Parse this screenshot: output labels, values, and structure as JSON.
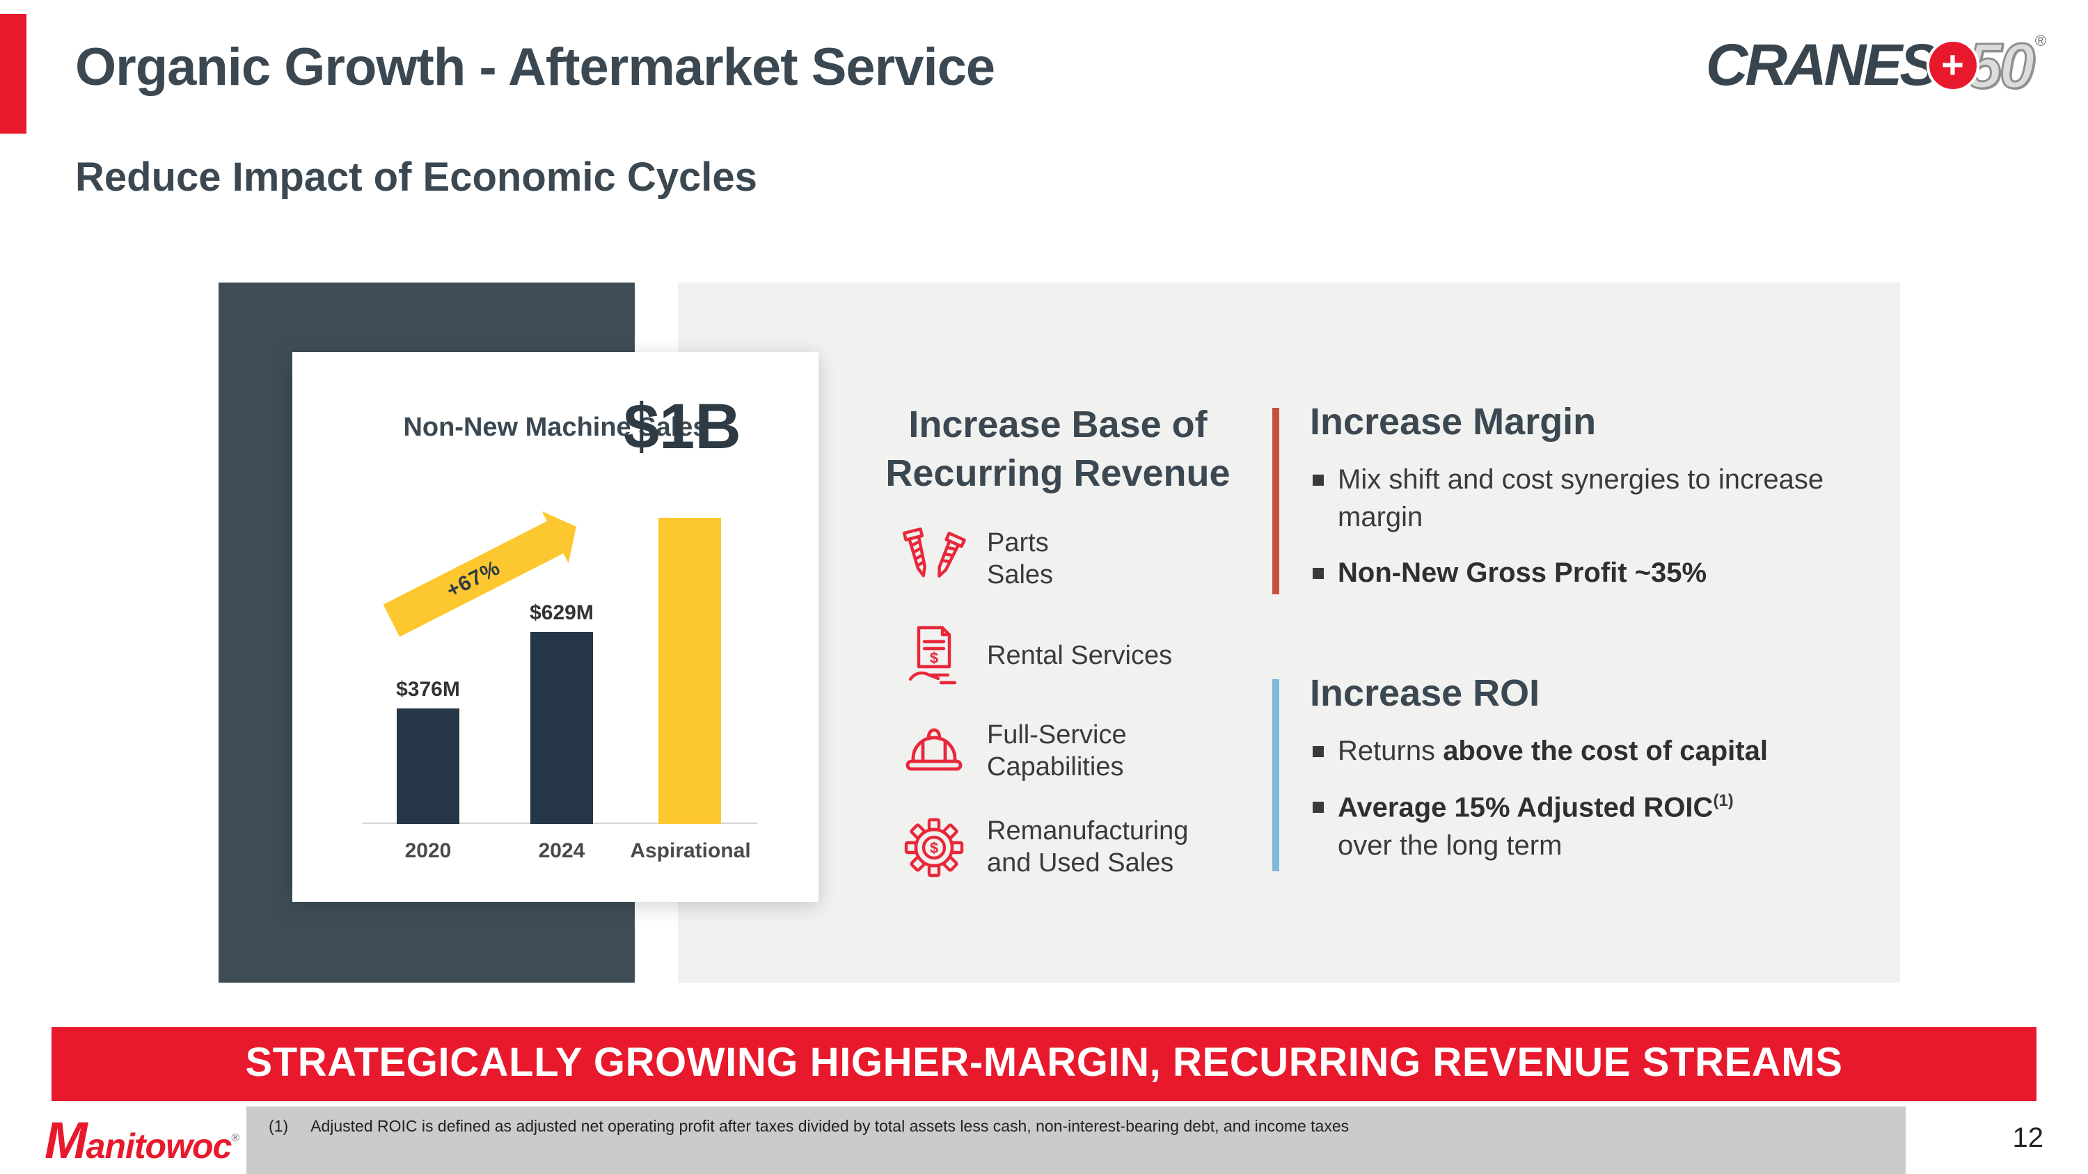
{
  "slide": {
    "title": "Organic Growth - Aftermarket Service",
    "subtitle": "Reduce Impact of Economic Cycles",
    "banner": "STRATEGICALLY GROWING HIGHER-MARGIN, RECURRING REVENUE STREAMS",
    "page_number": "12"
  },
  "header_logo": {
    "cranes": "CRANES",
    "plus": "+",
    "fifty": "50",
    "registered": "®"
  },
  "chart_data": {
    "type": "bar",
    "title": "Non-New Machine Sales",
    "categories": [
      "2020",
      "2024",
      "Aspirational"
    ],
    "values": [
      376,
      629,
      1000
    ],
    "value_labels": [
      "$376M",
      "$629M",
      ""
    ],
    "colors": [
      "#253746",
      "#253746",
      "#fdc82f"
    ],
    "big_label": "$1B",
    "growth_label": "+67%",
    "ylim": [
      0,
      1000
    ],
    "xlabel": "",
    "ylabel": "",
    "grid": false,
    "legend": false
  },
  "recurring": {
    "heading_line1": "Increase Base of",
    "heading_line2": "Recurring Revenue",
    "items": [
      {
        "icon": "parts-icon",
        "line1": "Parts",
        "line2": "Sales"
      },
      {
        "icon": "rental-services-icon",
        "line1": "Rental Services",
        "line2": ""
      },
      {
        "icon": "hardhat-icon",
        "line1": "Full-Service",
        "line2": "Capabilities"
      },
      {
        "icon": "gear-dollar-icon",
        "line1": "Remanufacturing",
        "line2": "and Used Sales"
      }
    ]
  },
  "margin_section": {
    "heading": "Increase Margin",
    "accent_color": "#c8503c",
    "bullet1": "Mix shift and cost synergies to increase margin",
    "bullet2": "Non-New Gross Profit ~35%"
  },
  "roi_section": {
    "heading": "Increase ROI",
    "accent_color": "#7fb8d8",
    "bullet1_normal": "Returns ",
    "bullet1_bold": "above the cost of capital",
    "bullet2_bold": "Average 15% Adjusted ROIC",
    "bullet2_sup": "(1)",
    "bullet2_normal": "over the long term"
  },
  "footer": {
    "footnote_marker": "(1)",
    "footnote_text": "Adjusted ROIC is defined as adjusted net operating profit after taxes divided by total assets less cash, non-interest-bearing debt, and income taxes",
    "logo_text_first": "M",
    "logo_text_rest": "anitowoc",
    "logo_registered": "®"
  },
  "colors": {
    "accent_red": "#e8192c",
    "dark_slate": "#3e4d55",
    "chart_yellow": "#fdc82f",
    "panel_gray": "#f1f1f0",
    "footer_gray": "#cbcbcb",
    "icon_red": "#e8283a"
  }
}
